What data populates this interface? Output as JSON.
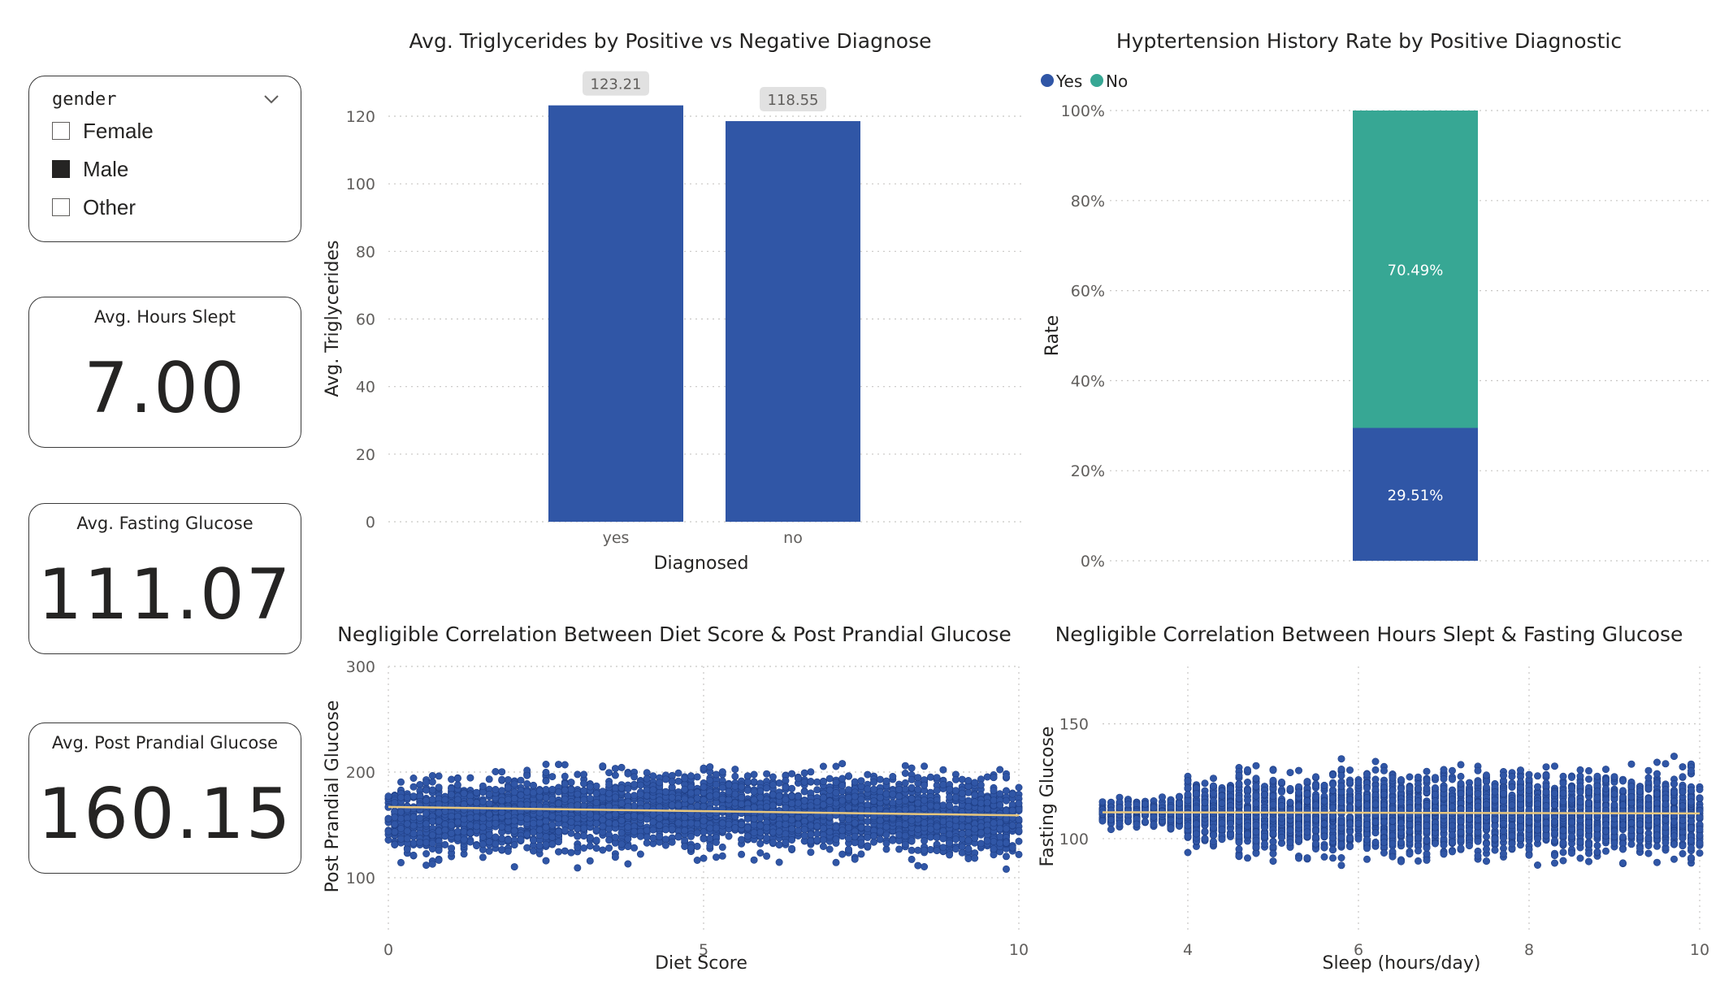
{
  "slicer": {
    "title": "gender",
    "items": [
      {
        "label": "Female",
        "checked": false
      },
      {
        "label": "Male",
        "checked": true
      },
      {
        "label": "Other",
        "checked": false
      }
    ]
  },
  "kpis": [
    {
      "title": "Avg. Hours Slept",
      "value": "7.00"
    },
    {
      "title": "Avg. Fasting Glucose",
      "value": "111.07"
    },
    {
      "title": "Avg. Post Prandial Glucose",
      "value": "160.15"
    }
  ],
  "colors": {
    "blue": "#3056A6",
    "teal": "#37A794",
    "trend": "#E8C77E",
    "grid": "#C8C6C4",
    "text": "#252423",
    "axis": "#605E5C"
  },
  "chart_data": [
    {
      "type": "bar",
      "title": "Avg. Triglycerides by Positive vs Negative Diagnose",
      "xlabel": "Diagnosed",
      "ylabel": "Avg. Triglycerides",
      "categories": [
        "yes",
        "no"
      ],
      "values": [
        123.21,
        118.55
      ],
      "data_labels": [
        "123.21",
        "118.55"
      ],
      "ylim": [
        0,
        120
      ],
      "yticks": [
        0,
        20,
        40,
        60,
        80,
        100,
        120
      ],
      "grid": true
    },
    {
      "type": "bar",
      "stacked": true,
      "title": "Hyptertension History Rate by Positive Diagnostic",
      "ylabel": "Rate",
      "legend": {
        "position": "top-left",
        "entries": [
          "Yes",
          "No"
        ]
      },
      "series": [
        {
          "name": "Yes",
          "values": [
            29.51
          ],
          "label": "29.51%"
        },
        {
          "name": "No",
          "values": [
            70.49
          ],
          "label": "70.49%"
        }
      ],
      "ylim": [
        0,
        100
      ],
      "yticks": [
        "0%",
        "20%",
        "40%",
        "60%",
        "80%",
        "100%"
      ],
      "grid": true
    },
    {
      "type": "scatter",
      "title": "Negligible Correlation Between Diet Score & Post Prandial Glucose",
      "xlabel": "Diet Score",
      "ylabel": "Post Prandial Glucose",
      "xlim": [
        0,
        10
      ],
      "ylim": [
        50,
        300
      ],
      "xticks": [
        0,
        5,
        10
      ],
      "yticks": [
        100,
        200,
        300
      ],
      "y_floor": 70,
      "trend": {
        "x": [
          0,
          10
        ],
        "y": [
          167,
          159
        ]
      },
      "grid": true
    },
    {
      "type": "scatter",
      "title": "Negligible Correlation Between Hours Slept & Fasting Glucose",
      "xlabel": "Sleep (hours/day)",
      "ylabel": "Fasting Glucose",
      "xlim": [
        3,
        10
      ],
      "ylim": [
        60,
        175
      ],
      "xticks": [
        4,
        6,
        8,
        10
      ],
      "yticks": [
        100,
        150
      ],
      "y_floor": 70,
      "trend": {
        "x": [
          3,
          10
        ],
        "y": [
          111.5,
          111
        ]
      },
      "grid": true
    }
  ]
}
